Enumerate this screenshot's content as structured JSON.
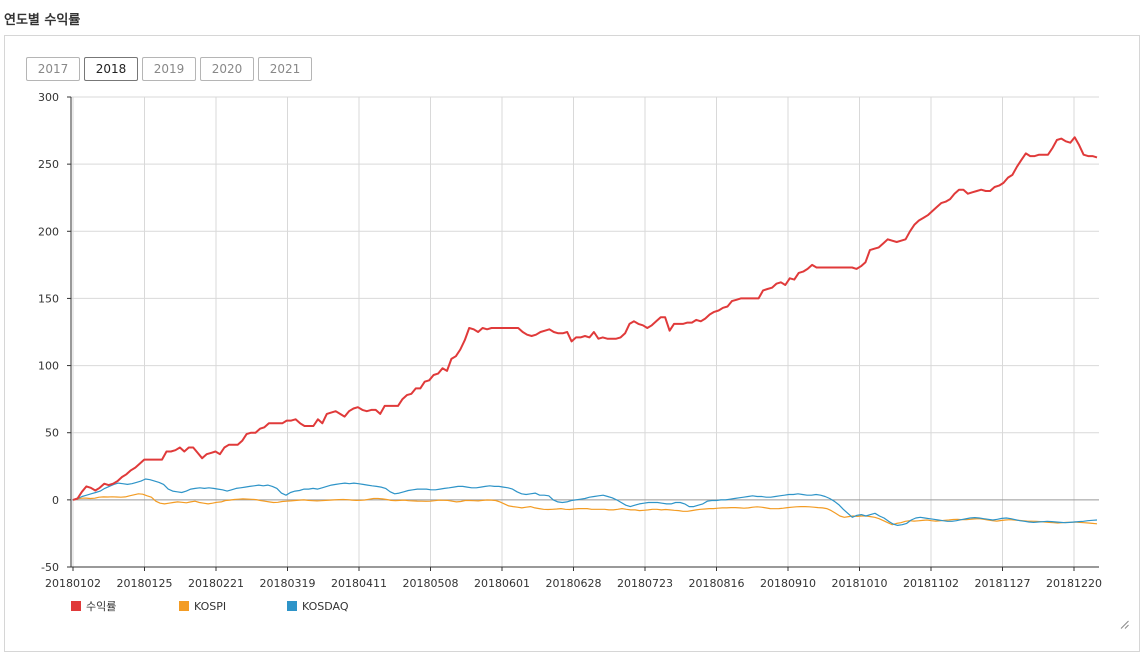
{
  "page": {
    "title": "연도별 수익률"
  },
  "year_tabs": {
    "items": [
      "2017",
      "2018",
      "2019",
      "2020",
      "2021"
    ],
    "active": "2018"
  },
  "colors": {
    "return": "#e03a3a",
    "kospi": "#f39c24",
    "kosdaq": "#2e94c8",
    "grid": "#d9d9d9",
    "zero": "#999999"
  },
  "chart_data": {
    "type": "line",
    "title": "",
    "xlabel": "",
    "ylabel": "",
    "ylim": [
      -50,
      300
    ],
    "yticks": [
      -50,
      0,
      50,
      100,
      150,
      200,
      250,
      300
    ],
    "grid": true,
    "legend": "bottom-left",
    "xtick_labels": [
      "20180102",
      "20180125",
      "20180221",
      "20180319",
      "20180411",
      "20180508",
      "20180601",
      "20180628",
      "20180723",
      "20180816",
      "20180910",
      "20181010",
      "20181102",
      "20181127",
      "20181220"
    ],
    "series": [
      {
        "name": "수익률",
        "color": "#e03a3a",
        "values": [
          0,
          1,
          6,
          10,
          9,
          7,
          9,
          12,
          11,
          12,
          14,
          17,
          19,
          22,
          24,
          27,
          30,
          30,
          30,
          30,
          30,
          36,
          36,
          37,
          39,
          36,
          39,
          39,
          35,
          31,
          34,
          35,
          36,
          34,
          39,
          41,
          41,
          41,
          44,
          49,
          50,
          50,
          53,
          54,
          57,
          57,
          57,
          57,
          59,
          59,
          60,
          57,
          55,
          55,
          55,
          60,
          57,
          64,
          65,
          66,
          64,
          62,
          66,
          68,
          69,
          67,
          66,
          67,
          67,
          64,
          70,
          70,
          70,
          70,
          75,
          78,
          79,
          83,
          83,
          88,
          89,
          93,
          94,
          98,
          96,
          105,
          107,
          112,
          119,
          128,
          127,
          125,
          128,
          127,
          128,
          128,
          128,
          128,
          128,
          128,
          128,
          125,
          123,
          122,
          123,
          125,
          126,
          127,
          125,
          124,
          124,
          125,
          118,
          121,
          121,
          122,
          121,
          125,
          120,
          121,
          120,
          120,
          120,
          121,
          124,
          131,
          133,
          131,
          130,
          128,
          130,
          133,
          136,
          136,
          126,
          131,
          131,
          131,
          132,
          132,
          134,
          133,
          135,
          138,
          140,
          141,
          143,
          144,
          148,
          149,
          150,
          150,
          150,
          150,
          150,
          156,
          157,
          158,
          161,
          162,
          160,
          165,
          164,
          169,
          170,
          172,
          175,
          173,
          173,
          173,
          173,
          173,
          173,
          173,
          173,
          173,
          172,
          174,
          177,
          186,
          187,
          188,
          191,
          194,
          193,
          192,
          193,
          194,
          200,
          205,
          208,
          210,
          212,
          215,
          218,
          221,
          222,
          224,
          228,
          231,
          231,
          228,
          229,
          230,
          231,
          230,
          230,
          233,
          234,
          236,
          240,
          242,
          248,
          253,
          258,
          256,
          256,
          257,
          257,
          257,
          262,
          268,
          269,
          267,
          266,
          270,
          264,
          257,
          256,
          256,
          255
        ]
      },
      {
        "name": "KOSPI",
        "color": "#f39c24",
        "values": [
          0,
          0.8,
          1.2,
          1.3,
          1,
          1.2,
          2,
          2.2,
          2.1,
          2.3,
          2.1,
          2,
          2.2,
          3,
          3.8,
          4.5,
          4.2,
          3,
          2,
          -1,
          -2.5,
          -3,
          -2.5,
          -2,
          -1.5,
          -1.8,
          -2.2,
          -1.5,
          -1,
          -2,
          -2.5,
          -3,
          -2.5,
          -1.8,
          -1.5,
          -0.5,
          -0.2,
          0.3,
          0.5,
          0.7,
          0.6,
          0.4,
          0.2,
          -0.5,
          -1,
          -1.5,
          -2,
          -1.8,
          -1.2,
          -1,
          -0.8,
          -0.5,
          -0.2,
          0,
          -0.4,
          -0.6,
          -0.8,
          -0.6,
          -0.4,
          -0.2,
          0,
          0.2,
          0.3,
          0.1,
          -0.2,
          -0.4,
          -0.3,
          -0.1,
          0.5,
          1,
          1,
          0.7,
          0.3,
          -0.4,
          -0.6,
          -0.4,
          -0.2,
          -0.6,
          -0.8,
          -0.9,
          -1,
          -1.1,
          -1,
          -0.6,
          -0.2,
          -0.3,
          -0.4,
          -1,
          -1.5,
          -1.2,
          -0.5,
          -0.5,
          -0.6,
          -0.8,
          -0.4,
          -0.1,
          -0.2,
          -0.5,
          -1.5,
          -3,
          -4.5,
          -5,
          -5.5,
          -6,
          -5.5,
          -5,
          -6,
          -6.5,
          -7,
          -7.2,
          -7,
          -6.8,
          -6.5,
          -7,
          -7.2,
          -6.8,
          -6.5,
          -6.5,
          -6.5,
          -7,
          -7,
          -7,
          -7,
          -7.5,
          -7.5,
          -7,
          -6.5,
          -7,
          -7.5,
          -7.5,
          -8,
          -7.8,
          -7.5,
          -7,
          -7,
          -7.5,
          -7.2,
          -7.5,
          -7.8,
          -8,
          -8.5,
          -8.5,
          -8,
          -7.5,
          -7,
          -6.8,
          -6.5,
          -6.5,
          -6.2,
          -6,
          -6,
          -5.8,
          -5.8,
          -6,
          -6.2,
          -6,
          -5.5,
          -5.2,
          -5.5,
          -6,
          -6.5,
          -6.6,
          -6.5,
          -6.2,
          -5.8,
          -5.5,
          -5.2,
          -5,
          -5,
          -5.2,
          -5.5,
          -5.8,
          -6,
          -6.5,
          -8,
          -10,
          -12,
          -13,
          -12.5,
          -12,
          -12.3,
          -12,
          -12,
          -12.5,
          -13,
          -14,
          -15.5,
          -17,
          -18.5,
          -17.5,
          -17,
          -16,
          -15.5,
          -15.8,
          -15.6,
          -15.3,
          -15,
          -15.5,
          -15.8,
          -15.6,
          -15.2,
          -15,
          -14.6,
          -14.5,
          -14.8,
          -14.7,
          -14.5,
          -14.2,
          -14,
          -14.5,
          -15,
          -15.5,
          -15.8,
          -15.4,
          -15,
          -14.8,
          -15,
          -15.3,
          -15.5,
          -15.8,
          -15.9,
          -16,
          -16.2,
          -16.5,
          -16.8,
          -17,
          -17.2,
          -17,
          -16.8,
          -16.7,
          -16.5,
          -16.8,
          -17,
          -17.2,
          -17.5,
          -17.8
        ]
      },
      {
        "name": "KOSDAQ",
        "color": "#2e94c8",
        "values": [
          0,
          1,
          2.5,
          3.5,
          4.5,
          5.5,
          6.5,
          8.5,
          10,
          11.5,
          12.5,
          12,
          11.5,
          12,
          13,
          14,
          15.5,
          15,
          14,
          13,
          11.5,
          8,
          6.5,
          6,
          5.5,
          6.5,
          8,
          8.5,
          9,
          8.5,
          9,
          8.5,
          8,
          7.5,
          6.5,
          7.5,
          8.5,
          9,
          9.5,
          10,
          10.5,
          11,
          10.5,
          11,
          10,
          8.5,
          5,
          3.5,
          5.5,
          6.5,
          7,
          8,
          8,
          8.5,
          8,
          9,
          10,
          11,
          11.5,
          12,
          12.5,
          12,
          12.5,
          12,
          11.5,
          11,
          10.5,
          10,
          9.5,
          8.5,
          6,
          4.5,
          5,
          6,
          7,
          7.5,
          8,
          8,
          8,
          7.5,
          7.5,
          8,
          8.5,
          9,
          9.5,
          10,
          10,
          9.5,
          9,
          9,
          9.5,
          10,
          10.5,
          10,
          10,
          9.5,
          9,
          8,
          6,
          4.5,
          4,
          4.5,
          5,
          3.5,
          3.5,
          3,
          0,
          -1.5,
          -2,
          -1.5,
          -0.5,
          0,
          0.5,
          1,
          2,
          2.5,
          3,
          3.5,
          2.5,
          1.5,
          0,
          -2,
          -4,
          -5,
          -4,
          -3,
          -2.5,
          -2,
          -2,
          -2,
          -2.5,
          -3,
          -3,
          -2,
          -2,
          -3,
          -5,
          -5,
          -4,
          -3,
          -1,
          -0.5,
          -0.5,
          0,
          0,
          0.5,
          1,
          1.5,
          2,
          2.5,
          3,
          2.5,
          2.5,
          2,
          2,
          2.5,
          3,
          3.5,
          4,
          4,
          4.5,
          4,
          3.5,
          3.5,
          4,
          3.5,
          2.5,
          1,
          -1,
          -3.5,
          -7,
          -10,
          -13,
          -11.5,
          -11,
          -12,
          -11,
          -10,
          -12,
          -13.5,
          -16,
          -18,
          -19,
          -18.5,
          -17.5,
          -15,
          -13.5,
          -13,
          -13.5,
          -14,
          -14.5,
          -15,
          -15.5,
          -16,
          -16,
          -15.5,
          -14.8,
          -14.2,
          -13.5,
          -13.2,
          -13.5,
          -14,
          -14.5,
          -15,
          -14.5,
          -13.8,
          -13.5,
          -14,
          -14.8,
          -15.5,
          -16,
          -16.5,
          -16.8,
          -16.5,
          -16.3,
          -16,
          -16.2,
          -16.5,
          -16.8,
          -17,
          -16.8,
          -16.5,
          -16.2,
          -16,
          -15.5,
          -15.2,
          -15
        ]
      }
    ]
  }
}
